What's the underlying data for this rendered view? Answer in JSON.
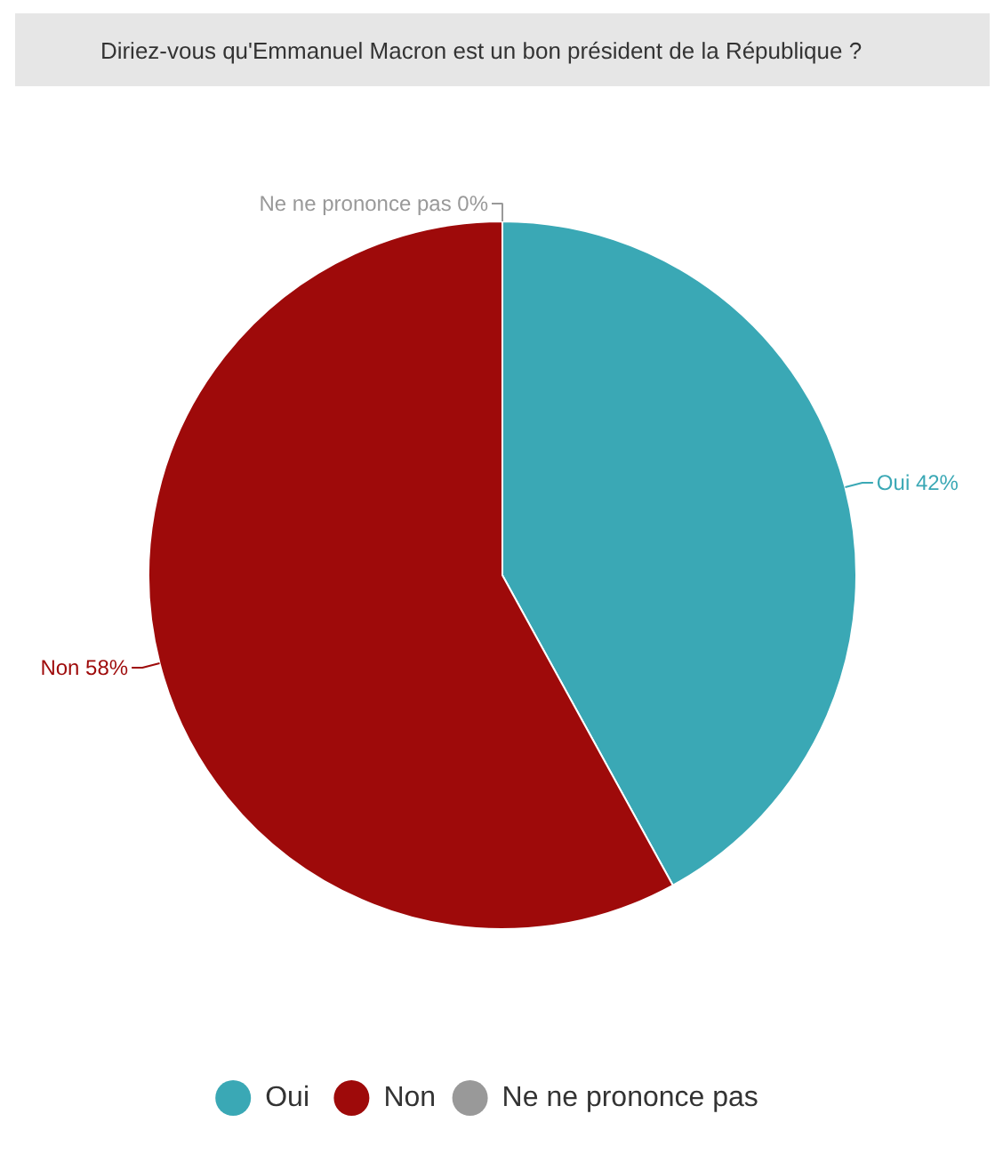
{
  "chart_data": {
    "type": "pie",
    "title": "Diriez-vous qu'Emmanuel Macron est un bon président de la République ?",
    "categories": [
      "Oui",
      "Non",
      "Ne ne prononce pas"
    ],
    "values": [
      42,
      58,
      0
    ],
    "colors": [
      "#3aa8b5",
      "#9e0a0a",
      "#999999"
    ],
    "value_labels": [
      "Oui 42%",
      "Non 58%",
      "Ne ne prononce pas 0%"
    ],
    "legend": "bottom"
  }
}
